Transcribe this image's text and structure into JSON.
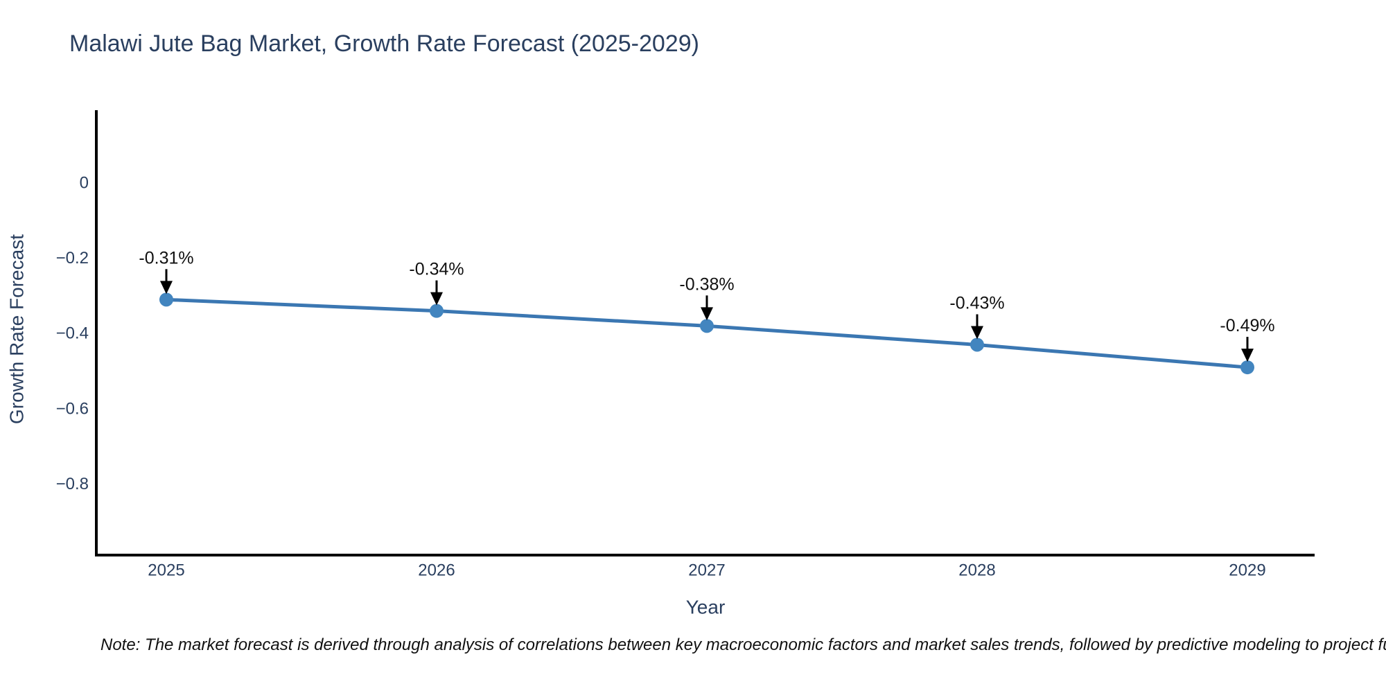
{
  "title": "Malawi Jute Bag Market, Growth Rate Forecast (2025-2029)",
  "note": "Note: The market forecast is derived through analysis of correlations between key macroeconomic factors and market sales trends, followed by predictive modeling to project future sa",
  "chart_data": {
    "type": "line",
    "title": "Malawi Jute Bag Market, Growth Rate Forecast (2025-2029)",
    "xlabel": "Year",
    "ylabel": "Growth Rate Forecast",
    "x": [
      2025,
      2026,
      2027,
      2028,
      2029
    ],
    "series": [
      {
        "name": "Growth Rate Forecast",
        "values": [
          -0.31,
          -0.34,
          -0.38,
          -0.43,
          -0.49
        ]
      }
    ],
    "point_labels": [
      "-0.31%",
      "-0.34%",
      "-0.38%",
      "-0.43%",
      "-0.49%"
    ],
    "yticks": [
      0,
      -0.2,
      -0.4,
      -0.6,
      -0.8
    ],
    "ytick_labels": [
      "0",
      "−0.2",
      "−0.4",
      "−0.6",
      "−0.8"
    ],
    "ylim": [
      -0.99,
      0.19
    ],
    "grid": false,
    "legend": false,
    "annotation_style": "value labels with downward arrows above each point",
    "colors": {
      "line": "#3b77b2",
      "marker": "#4285bf",
      "axis_line": "#000000",
      "axis_text": "#2a3f5f",
      "annotation_text": "#111111",
      "arrow": "#000000",
      "background": "#ffffff"
    }
  }
}
